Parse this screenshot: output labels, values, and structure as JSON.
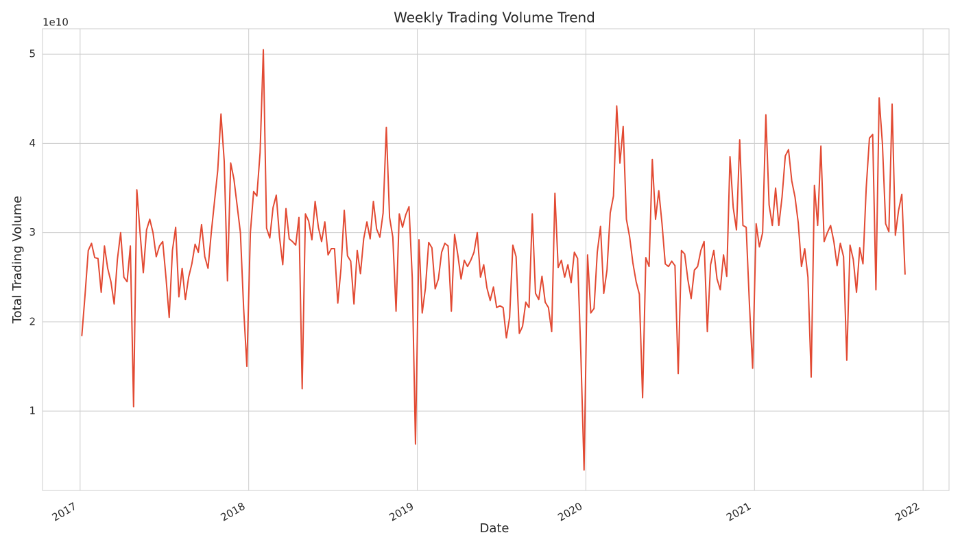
{
  "chart_data": {
    "type": "line",
    "title": "Weekly Trading Volume Trend",
    "x_label": "Date",
    "y_label": "Total Trading Volume",
    "y_offset_text": "1e10",
    "color": "#e24a33",
    "grid": true,
    "xlim": [
      2016.777,
      2022.154
    ],
    "xticks": [
      2017,
      2018,
      2019,
      2020,
      2021,
      2022
    ],
    "ylim": [
      0.11,
      5.285
    ],
    "yticks": [
      1,
      2,
      3,
      4,
      5
    ],
    "x": [
      2017.01,
      2017.0292,
      2017.0484,
      2017.0676,
      2017.0868,
      2017.106,
      2017.1252,
      2017.1444,
      2017.1636,
      2017.1828,
      2017.202,
      2017.2212,
      2017.2404,
      2017.2596,
      2017.2788,
      2017.298,
      2017.3172,
      2017.3364,
      2017.3556,
      2017.3748,
      2017.394,
      2017.4132,
      2017.4324,
      2017.4516,
      2017.4708,
      2017.49,
      2017.5092,
      2017.5284,
      2017.5476,
      2017.5668,
      2017.586,
      2017.6052,
      2017.6244,
      2017.6436,
      2017.6628,
      2017.682,
      2017.7012,
      2017.7204,
      2017.7396,
      2017.7588,
      2017.778,
      2017.7972,
      2017.8164,
      2017.8356,
      2017.8548,
      2017.874,
      2017.8932,
      2017.9124,
      2017.9316,
      2017.9508,
      2017.97,
      2017.9892,
      2018.01,
      2018.0292,
      2018.0484,
      2018.0676,
      2018.0868,
      2018.106,
      2018.1252,
      2018.1444,
      2018.1636,
      2018.1828,
      2018.202,
      2018.2212,
      2018.2404,
      2018.2596,
      2018.2788,
      2018.298,
      2018.3172,
      2018.3364,
      2018.3556,
      2018.3748,
      2018.394,
      2018.4132,
      2018.4324,
      2018.4516,
      2018.4708,
      2018.49,
      2018.5092,
      2018.5284,
      2018.5476,
      2018.5668,
      2018.586,
      2018.6052,
      2018.6244,
      2018.6436,
      2018.6628,
      2018.682,
      2018.7012,
      2018.7204,
      2018.7396,
      2018.7588,
      2018.778,
      2018.7972,
      2018.8164,
      2018.8356,
      2018.8548,
      2018.874,
      2018.8932,
      2018.9124,
      2018.9316,
      2018.9508,
      2018.97,
      2018.9892,
      2019.01,
      2019.0292,
      2019.0484,
      2019.0676,
      2019.0868,
      2019.106,
      2019.1252,
      2019.1444,
      2019.1636,
      2019.1828,
      2019.202,
      2019.2212,
      2019.2404,
      2019.2596,
      2019.2788,
      2019.298,
      2019.3172,
      2019.3364,
      2019.3556,
      2019.3748,
      2019.394,
      2019.4132,
      2019.4324,
      2019.4516,
      2019.4708,
      2019.49,
      2019.5092,
      2019.5284,
      2019.5476,
      2019.5668,
      2019.586,
      2019.6052,
      2019.6244,
      2019.6436,
      2019.6628,
      2019.682,
      2019.7012,
      2019.7204,
      2019.7396,
      2019.7588,
      2019.778,
      2019.7972,
      2019.8164,
      2019.8356,
      2019.8548,
      2019.874,
      2019.8932,
      2019.9124,
      2019.9316,
      2019.9508,
      2019.97,
      2019.9892,
      2020.01,
      2020.0292,
      2020.0484,
      2020.0676,
      2020.0868,
      2020.106,
      2020.1252,
      2020.1444,
      2020.1636,
      2020.1828,
      2020.202,
      2020.2212,
      2020.2404,
      2020.2596,
      2020.2788,
      2020.298,
      2020.3172,
      2020.3364,
      2020.3556,
      2020.3748,
      2020.394,
      2020.4132,
      2020.4324,
      2020.4516,
      2020.4708,
      2020.49,
      2020.5092,
      2020.5284,
      2020.5476,
      2020.5668,
      2020.586,
      2020.6052,
      2020.6244,
      2020.6436,
      2020.6628,
      2020.682,
      2020.7012,
      2020.7204,
      2020.7396,
      2020.7588,
      2020.778,
      2020.7972,
      2020.8164,
      2020.8356,
      2020.8548,
      2020.874,
      2020.8932,
      2020.9124,
      2020.9316,
      2020.9508,
      2020.97,
      2020.9892,
      2021.01,
      2021.0292,
      2021.0484,
      2021.0676,
      2021.0868,
      2021.106,
      2021.1252,
      2021.1444,
      2021.1636,
      2021.1828,
      2021.202,
      2021.2212,
      2021.2404,
      2021.2596,
      2021.2788,
      2021.298,
      2021.3172,
      2021.3364,
      2021.3556,
      2021.3748,
      2021.394,
      2021.4132,
      2021.4324,
      2021.4516,
      2021.4708,
      2021.49,
      2021.5092,
      2021.5284,
      2021.5476,
      2021.5668,
      2021.586,
      2021.6052,
      2021.6244,
      2021.6436,
      2021.6628,
      2021.682,
      2021.7012,
      2021.7204,
      2021.7396,
      2021.7588,
      2021.778,
      2021.7972,
      2021.8164,
      2021.8356,
      2021.8548,
      2021.874,
      2021.8932
    ],
    "values": [
      1.84,
      2.3,
      2.8,
      2.88,
      2.72,
      2.71,
      2.33,
      2.85,
      2.6,
      2.45,
      2.2,
      2.7,
      3.0,
      2.5,
      2.45,
      2.85,
      1.05,
      3.48,
      3.0,
      2.55,
      3.03,
      3.15,
      3.0,
      2.73,
      2.85,
      2.9,
      2.5,
      2.05,
      2.8,
      3.06,
      2.28,
      2.6,
      2.25,
      2.5,
      2.65,
      2.87,
      2.78,
      3.09,
      2.73,
      2.6,
      3.0,
      3.35,
      3.7,
      4.33,
      3.8,
      2.46,
      3.78,
      3.6,
      3.3,
      3.0,
      2.15,
      1.5,
      3.0,
      3.46,
      3.41,
      3.9,
      5.05,
      3.05,
      2.94,
      3.28,
      3.42,
      2.95,
      2.64,
      3.27,
      2.93,
      2.9,
      2.86,
      3.17,
      1.25,
      3.21,
      3.13,
      2.92,
      3.35,
      3.06,
      2.9,
      3.12,
      2.75,
      2.82,
      2.82,
      2.21,
      2.6,
      3.25,
      2.74,
      2.68,
      2.2,
      2.8,
      2.54,
      2.93,
      3.12,
      2.93,
      3.35,
      3.04,
      2.95,
      3.22,
      4.18,
      3.17,
      2.95,
      2.12,
      3.21,
      3.06,
      3.2,
      3.29,
      2.5,
      0.63,
      2.92,
      2.1,
      2.38,
      2.89,
      2.83,
      2.37,
      2.48,
      2.78,
      2.88,
      2.85,
      2.12,
      2.98,
      2.75,
      2.48,
      2.69,
      2.62,
      2.69,
      2.78,
      3.0,
      2.5,
      2.64,
      2.38,
      2.24,
      2.39,
      2.16,
      2.18,
      2.16,
      1.82,
      2.05,
      2.86,
      2.73,
      1.87,
      1.95,
      2.22,
      2.16,
      3.21,
      2.32,
      2.25,
      2.51,
      2.22,
      2.16,
      1.89,
      3.44,
      2.61,
      2.69,
      2.5,
      2.64,
      2.44,
      2.78,
      2.71,
      1.65,
      0.34,
      2.75,
      2.1,
      2.15,
      2.78,
      3.07,
      2.32,
      2.58,
      3.22,
      3.41,
      4.42,
      3.78,
      4.19,
      3.15,
      2.95,
      2.66,
      2.45,
      2.31,
      1.15,
      2.72,
      2.62,
      3.82,
      3.15,
      3.47,
      3.1,
      2.65,
      2.62,
      2.68,
      2.63,
      1.42,
      2.8,
      2.76,
      2.47,
      2.26,
      2.58,
      2.62,
      2.8,
      2.9,
      1.89,
      2.64,
      2.8,
      2.48,
      2.36,
      2.75,
      2.51,
      3.85,
      3.28,
      3.03,
      4.04,
      3.08,
      3.06,
      2.2,
      1.48,
      3.1,
      2.84,
      3.0,
      4.32,
      3.31,
      3.08,
      3.5,
      3.08,
      3.4,
      3.86,
      3.93,
      3.58,
      3.4,
      3.11,
      2.62,
      2.82,
      2.5,
      1.38,
      3.53,
      3.08,
      3.97,
      2.9,
      3.0,
      3.08,
      2.9,
      2.63,
      2.88,
      2.73,
      1.57,
      2.86,
      2.7,
      2.33,
      2.83,
      2.65,
      3.5,
      4.06,
      4.1,
      2.36,
      4.51,
      4.0,
      3.1,
      3.01,
      4.44,
      2.97,
      3.25,
      3.43,
      2.53
    ]
  }
}
